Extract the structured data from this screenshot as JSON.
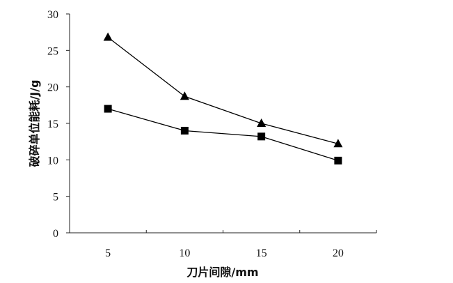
{
  "chart_data": {
    "type": "line",
    "title": "",
    "xlabel": "刀片间隙/mm",
    "ylabel": "破碎单位能耗/J/g",
    "categories": [
      "5",
      "10",
      "15",
      "20"
    ],
    "ylim": [
      0,
      30
    ],
    "yticks": [
      "0",
      "5",
      "10",
      "15",
      "20",
      "25",
      "30"
    ],
    "grid": false,
    "series": [
      {
        "marker": "triangle",
        "color": "#000000",
        "values": [
          26.8,
          18.7,
          15.0,
          12.2
        ]
      },
      {
        "marker": "square",
        "color": "#000000",
        "values": [
          17.0,
          14.0,
          13.2,
          9.9
        ]
      }
    ]
  }
}
